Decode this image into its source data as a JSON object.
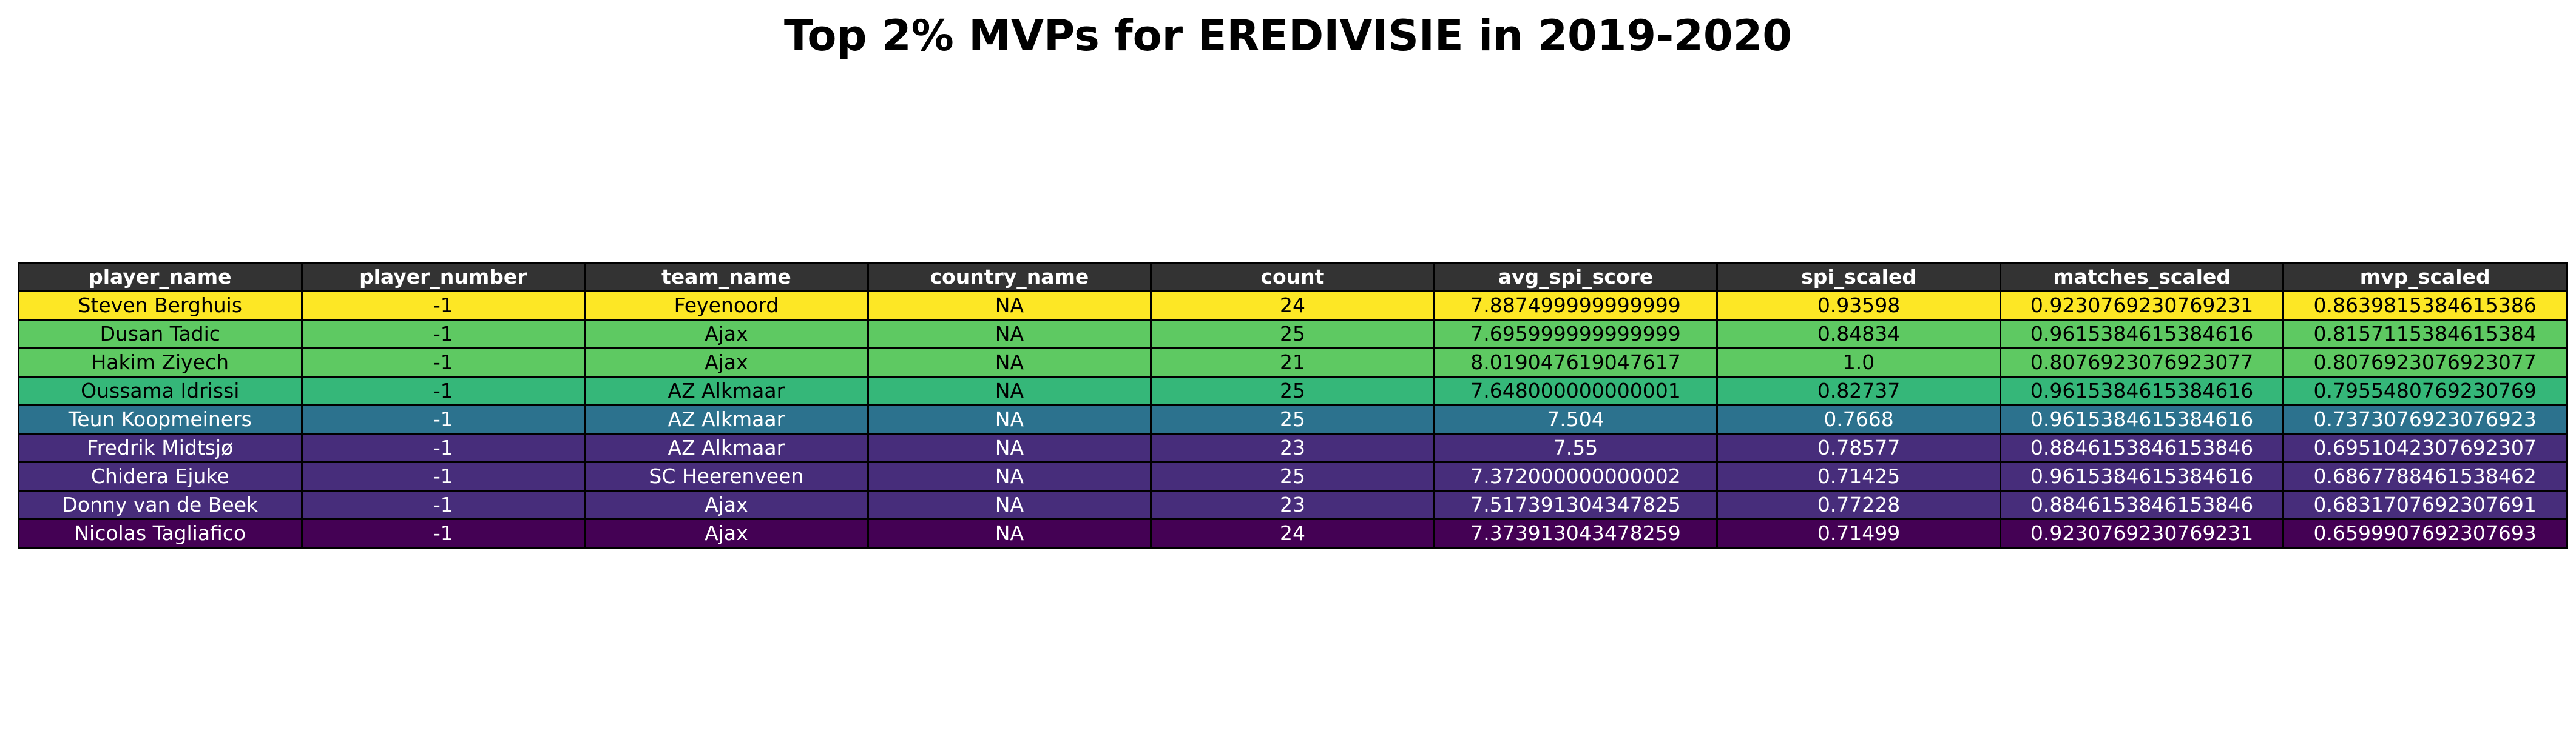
{
  "chart_data": {
    "type": "table",
    "title": "Top 2% MVPs for EREDIVISIE in 2019-2020",
    "columns": [
      "player_name",
      "player_number",
      "team_name",
      "country_name",
      "count",
      "avg_spi_score",
      "spi_scaled",
      "matches_scaled",
      "mvp_scaled"
    ],
    "rows": [
      {
        "cells": [
          "Steven Berghuis",
          "-1",
          "Feyenoord",
          "NA",
          "24",
          "7.887499999999999",
          "0.93598",
          "0.9230769230769231",
          "0.8639815384615386"
        ],
        "fill": "#fde725",
        "text_color": "#000000"
      },
      {
        "cells": [
          "Dusan Tadic",
          "-1",
          "Ajax",
          "NA",
          "25",
          "7.695999999999999",
          "0.84834",
          "0.9615384615384616",
          "0.8157115384615384"
        ],
        "fill": "#5ec962",
        "text_color": "#000000"
      },
      {
        "cells": [
          "Hakim Ziyech",
          "-1",
          "Ajax",
          "NA",
          "21",
          "8.019047619047617",
          "1.0",
          "0.8076923076923077",
          "0.8076923076923077"
        ],
        "fill": "#5ec962",
        "text_color": "#000000"
      },
      {
        "cells": [
          "Oussama Idrissi",
          "-1",
          "AZ Alkmaar",
          "NA",
          "25",
          "7.648000000000001",
          "0.82737",
          "0.9615384615384616",
          "0.7955480769230769"
        ],
        "fill": "#35b779",
        "text_color": "#000000"
      },
      {
        "cells": [
          "Teun Koopmeiners",
          "-1",
          "AZ Alkmaar",
          "NA",
          "25",
          "7.504",
          "0.7668",
          "0.9615384615384616",
          "0.7373076923076923"
        ],
        "fill": "#2c728e",
        "text_color": "#ffffff"
      },
      {
        "cells": [
          "Fredrik Midtsjø",
          "-1",
          "AZ Alkmaar",
          "NA",
          "23",
          "7.55",
          "0.78577",
          "0.8846153846153846",
          "0.6951042307692307"
        ],
        "fill": "#472d7b",
        "text_color": "#ffffff"
      },
      {
        "cells": [
          "Chidera Ejuke",
          "-1",
          "SC Heerenveen",
          "NA",
          "25",
          "7.372000000000002",
          "0.71425",
          "0.9615384615384616",
          "0.6867788461538462"
        ],
        "fill": "#472d7b",
        "text_color": "#ffffff"
      },
      {
        "cells": [
          "Donny van de Beek",
          "-1",
          "Ajax",
          "NA",
          "23",
          "7.517391304347825",
          "0.77228",
          "0.8846153846153846",
          "0.6831707692307691"
        ],
        "fill": "#472d7b",
        "text_color": "#ffffff"
      },
      {
        "cells": [
          "Nicolas Tagliafico",
          "-1",
          "Ajax",
          "NA",
          "24",
          "7.373913043478259",
          "0.71499",
          "0.9230769230769231",
          "0.6599907692307693"
        ],
        "fill": "#440154",
        "text_color": "#ffffff"
      }
    ]
  }
}
